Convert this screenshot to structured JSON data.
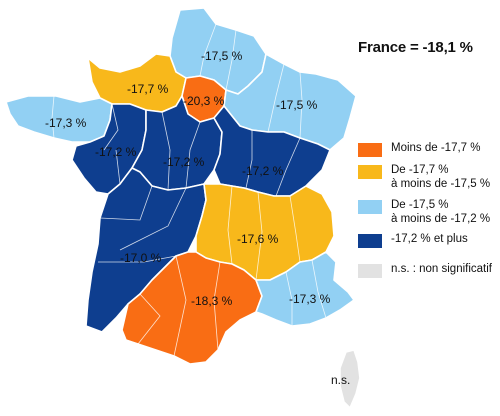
{
  "headline": "France = -18,1 %",
  "colors": {
    "orange": "#f96d14",
    "yellow": "#f8b81b",
    "light_blue": "#92d0f3",
    "dark_blue": "#0e3e8f",
    "grey": "#e2e2e2"
  },
  "legend": [
    {
      "label": "Moins de -17,7 %",
      "color": "#f96d14"
    },
    {
      "label": "De -17,7 %\nà moins de -17,5 %",
      "color": "#f8b81b"
    },
    {
      "label": "De -17,5 %\nà moins de -17,2 %",
      "color": "#92d0f3"
    },
    {
      "label": "-17,2 % et plus",
      "color": "#0e3e8f"
    },
    {
      "label": "n.s. : non significatif",
      "color": "#e2e2e2"
    }
  ],
  "regions": [
    {
      "name": "Hauts-de-France",
      "value": "-17,5 %",
      "color": "#92d0f3"
    },
    {
      "name": "Normandie",
      "value": "-17,7 %",
      "color": "#f8b81b"
    },
    {
      "name": "Île-de-France",
      "value": "-20,3 %",
      "color": "#f96d14"
    },
    {
      "name": "Grand Est",
      "value": "-17,5 %",
      "color": "#92d0f3"
    },
    {
      "name": "Bretagne",
      "value": "-17,3 %",
      "color": "#92d0f3"
    },
    {
      "name": "Pays de la Loire",
      "value": "-17,2 %",
      "color": "#0e3e8f"
    },
    {
      "name": "Centre-Val de Loire",
      "value": "-17,2 %",
      "color": "#0e3e8f"
    },
    {
      "name": "Bourgogne-Franche-Comté",
      "value": "-17,2 %",
      "color": "#0e3e8f"
    },
    {
      "name": "Nouvelle-Aquitaine",
      "value": "-17,0 %",
      "color": "#0e3e8f"
    },
    {
      "name": "Auvergne-Rhône-Alpes",
      "value": "-17,6 %",
      "color": "#f8b81b"
    },
    {
      "name": "Occitanie",
      "value": "-18,3 %",
      "color": "#f96d14"
    },
    {
      "name": "Provence-Alpes-Côte d'Azur",
      "value": "-17,3 %",
      "color": "#92d0f3"
    },
    {
      "name": "Corse",
      "value": "n.s.",
      "color": "#e2e2e2"
    }
  ]
}
